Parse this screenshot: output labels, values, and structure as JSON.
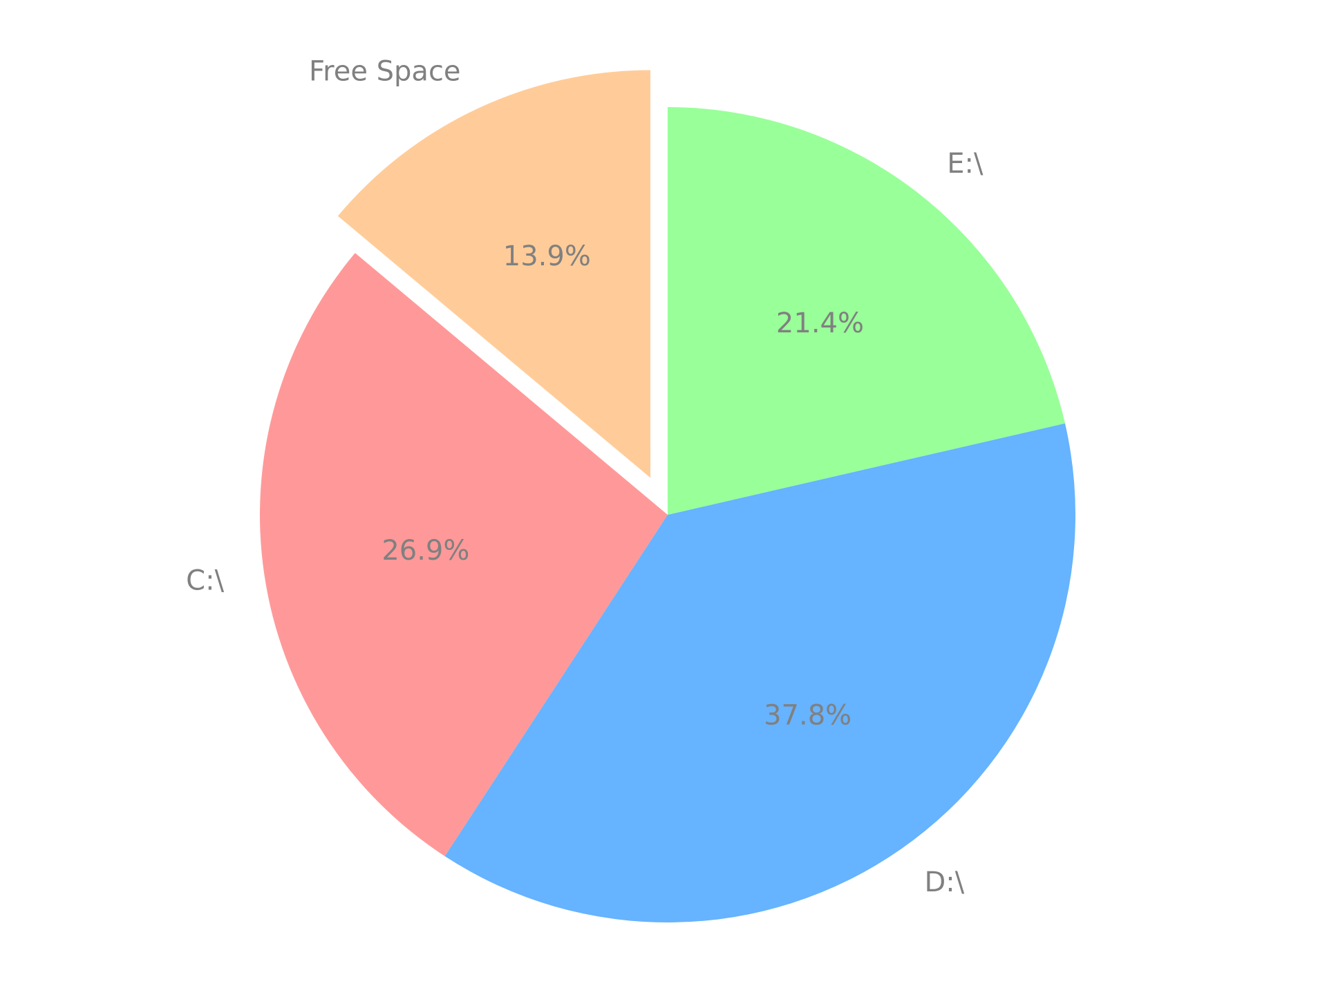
{
  "chart_data": {
    "type": "pie",
    "title": "",
    "slices": [
      {
        "label": "Free Space",
        "value": 13.9,
        "pct_label": "13.9%",
        "color": "#ffcc99",
        "exploded": true
      },
      {
        "label": "C:\\",
        "value": 26.9,
        "pct_label": "26.9%",
        "color": "#ff9999",
        "exploded": false
      },
      {
        "label": "D:\\",
        "value": 37.8,
        "pct_label": "37.8%",
        "color": "#66b3ff",
        "exploded": false
      },
      {
        "label": "E:\\",
        "value": 21.4,
        "pct_label": "21.4%",
        "color": "#99ff99",
        "exploded": false
      }
    ],
    "start_angle": "top",
    "direction": "counterclockwise",
    "legend": "none",
    "text_color": "#808080"
  }
}
